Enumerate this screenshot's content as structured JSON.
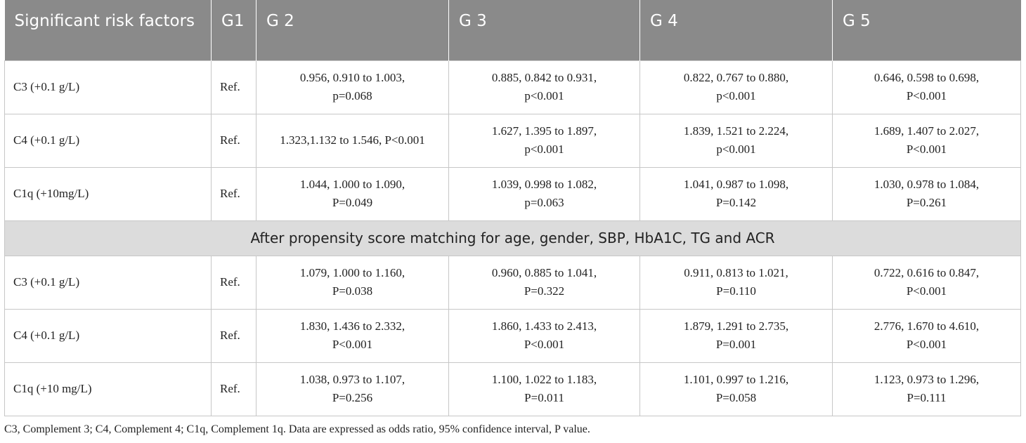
{
  "header": {
    "col0": "Significant risk factors",
    "col1": "G1",
    "col2": "G 2",
    "col3": "G 3",
    "col4": "G 4",
    "col5": "G 5"
  },
  "rows_before": [
    {
      "factor": "C3 (+0.1 g/L)",
      "g1": "Ref.",
      "g2": [
        "0.956, 0.910 to 1.003,",
        "p=0.068"
      ],
      "g3": [
        "0.885, 0.842 to 0.931,",
        "p<0.001"
      ],
      "g4": [
        "0.822, 0.767 to 0.880,",
        "p<0.001"
      ],
      "g5": [
        "0.646, 0.598 to 0.698,",
        "P<0.001"
      ]
    },
    {
      "factor": "C4 (+0.1 g/L)",
      "g1": "Ref.",
      "g2": [
        "1.323,1.132 to 1.546, P<0.001",
        ""
      ],
      "g3": [
        "1.627, 1.395 to 1.897,",
        "p<0.001"
      ],
      "g4": [
        "1.839, 1.521 to 2.224,",
        "p<0.001"
      ],
      "g5": [
        "1.689, 1.407 to 2.027,",
        "P<0.001"
      ]
    },
    {
      "factor": "C1q (+10mg/L)",
      "g1": "Ref.",
      "g2": [
        "1.044, 1.000 to 1.090,",
        "P=0.049"
      ],
      "g3": [
        "1.039, 0.998 to 1.082,",
        "p=0.063"
      ],
      "g4": [
        "1.041, 0.987 to 1.098,",
        "P=0.142"
      ],
      "g5": [
        "1.030, 0.978 to 1.084,",
        "P=0.261"
      ]
    }
  ],
  "section_label": "After propensity score matching for age, gender, SBP, HbA1C, TG and ACR",
  "rows_after": [
    {
      "factor": "C3 (+0.1 g/L)",
      "g1": "Ref.",
      "g2": [
        "1.079, 1.000 to 1.160,",
        "P=0.038"
      ],
      "g3": [
        "0.960, 0.885 to 1.041,",
        "P=0.322"
      ],
      "g4": [
        "0.911, 0.813 to 1.021,",
        "P=0.110"
      ],
      "g5": [
        "0.722, 0.616 to 0.847,",
        "P<0.001"
      ]
    },
    {
      "factor": "C4 (+0.1 g/L)",
      "g1": "Ref.",
      "g2": [
        "1.830, 1.436 to 2.332,",
        "P<0.001"
      ],
      "g3": [
        "1.860, 1.433 to 2.413,",
        "P<0.001"
      ],
      "g4": [
        "1.879, 1.291 to 2.735,",
        "P=0.001"
      ],
      "g5": [
        "2.776, 1.670 to 4.610,",
        "P<0.001"
      ]
    },
    {
      "factor": "C1q (+10 mg/L)",
      "g1": "Ref.",
      "g2": [
        "1.038, 0.973 to 1.107,",
        "P=0.256"
      ],
      "g3": [
        "1.100, 1.022 to 1.183,",
        "P=0.011"
      ],
      "g4": [
        "1.101, 0.997 to 1.216,",
        "P=0.058"
      ],
      "g5": [
        "1.123, 0.973 to 1.296,",
        "P=0.111"
      ]
    }
  ],
  "footnote": "C3, Complement 3; C4, Complement 4; C1q, Complement 1q. Data are expressed as odds ratio, 95% confidence interval, P value."
}
